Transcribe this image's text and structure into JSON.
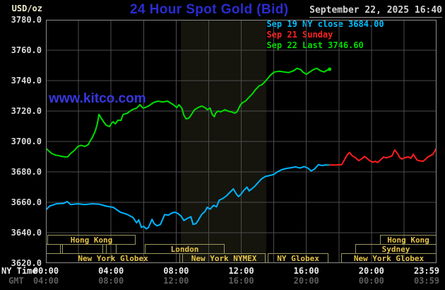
{
  "header": {
    "unit_label": "USD/oz",
    "title": "24 Hour Spot Gold (Bid)",
    "datetime": "September 22, 2025 16:40"
  },
  "watermark": "www.kitco.com",
  "legend": [
    {
      "dash": "-",
      "label": "Sep 19 NY close 3684.00",
      "color": "#00bfff"
    },
    {
      "dash": "-",
      "label": "Sep 21 Sunday",
      "color": "#ff2222"
    },
    {
      "dash": "-",
      "label": "Sep 22 Last 3746.60",
      "color": "#00dd00"
    }
  ],
  "axes": {
    "ny_label": "NY Time",
    "gmt_label": "GMT",
    "y_ticks": [
      "3780.0",
      "3760.0",
      "3740.0",
      "3720.0",
      "3700.0",
      "3680.0",
      "3660.0",
      "3640.0",
      "3620.0"
    ],
    "x_ticks": [
      {
        "hour": 0,
        "ny": "00:00",
        "gmt": "04:00"
      },
      {
        "hour": 4,
        "ny": "04:00",
        "gmt": "08:00"
      },
      {
        "hour": 8,
        "ny": "08:00",
        "gmt": "12:00"
      },
      {
        "hour": 12,
        "ny": "12:00",
        "gmt": "16:00"
      },
      {
        "hour": 16,
        "ny": "16:00",
        "gmt": "20:00"
      },
      {
        "hour": 20,
        "ny": "20:00",
        "gmt": "00:00"
      },
      {
        "hour": 23.98,
        "ny": "23:59",
        "gmt": "03:59"
      }
    ]
  },
  "colors": {
    "background": "#000000",
    "plot_border": "#8c8c8c",
    "gridline": "#4d4d4d",
    "nymex_band": "#15150e",
    "session_border": "#9c9660",
    "session_label": "#e6c44a",
    "title_blue": "#2b2bd2",
    "watermark_blue": "#3737e0"
  },
  "sessions": [
    {
      "row": 1,
      "label": "Hong Kong",
      "start": 0.09,
      "end": 5.51
    },
    {
      "row": 2,
      "label": "",
      "start": 0.0,
      "end": 0.91
    },
    {
      "row": 2,
      "label": "",
      "start": 1.0,
      "end": 3.52
    },
    {
      "row": 2,
      "label": "",
      "start": 3.69,
      "end": 4.34
    },
    {
      "row": 2,
      "label": "London",
      "start": 6.08,
      "end": 10.98
    },
    {
      "row": 3,
      "label": "New York Globex",
      "start": 0.0,
      "end": 8.25
    },
    {
      "row": 3,
      "label": "New York NYMEX",
      "start": 8.38,
      "end": 13.5
    },
    {
      "row": 3,
      "label": "NY Globex",
      "start": 13.63,
      "end": 17.36
    },
    {
      "row": 3,
      "label": "New York Globex",
      "start": 18.14,
      "end": 24.0
    },
    {
      "row": 2,
      "label": "Sydney",
      "start": 19.01,
      "end": 24.0
    },
    {
      "row": 1,
      "label": "Hong Kong",
      "start": 20.53,
      "end": 24.0
    }
  ],
  "chart_data": {
    "type": "line",
    "title": "24 Hour Spot Gold (Bid)",
    "ylabel": "USD/oz",
    "ylim": [
      3620,
      3780
    ],
    "y_tick_step": 20,
    "x_range_hours": [
      0,
      24
    ],
    "grid": true,
    "legend_position": "top-right",
    "nymex_band_hours": [
      8.29,
      13.54
    ],
    "sep19_ny_close": 3684.0,
    "sep22_last": 3746.6,
    "series": [
      {
        "name": "Sep 19 NY close 3684.00",
        "color": "#00b4ff",
        "points": [
          [
            0,
            3655
          ],
          [
            0.22,
            3657.5
          ],
          [
            0.65,
            3659
          ],
          [
            1.09,
            3659.3
          ],
          [
            1.3,
            3660.5
          ],
          [
            1.52,
            3658.5
          ],
          [
            1.96,
            3659
          ],
          [
            2.39,
            3658.5
          ],
          [
            2.83,
            3659
          ],
          [
            3.26,
            3658.8
          ],
          [
            3.7,
            3657.5
          ],
          [
            4.13,
            3656.7
          ],
          [
            4.57,
            3653.5
          ],
          [
            5,
            3652
          ],
          [
            5.35,
            3650
          ],
          [
            5.57,
            3646.5
          ],
          [
            5.7,
            3648.5
          ],
          [
            5.87,
            3643.5
          ],
          [
            6,
            3644.2
          ],
          [
            6.17,
            3642.5
          ],
          [
            6.3,
            3643.5
          ],
          [
            6.52,
            3648.8
          ],
          [
            6.65,
            3646
          ],
          [
            6.83,
            3644.5
          ],
          [
            7.04,
            3645.5
          ],
          [
            7.3,
            3652
          ],
          [
            7.52,
            3651.5
          ],
          [
            7.74,
            3653
          ],
          [
            7.91,
            3653.5
          ],
          [
            8.13,
            3652.5
          ],
          [
            8.3,
            3651
          ],
          [
            8.48,
            3648
          ],
          [
            8.7,
            3649.5
          ],
          [
            8.91,
            3650.5
          ],
          [
            9.04,
            3645.5
          ],
          [
            9.22,
            3646
          ],
          [
            9.35,
            3648
          ],
          [
            9.57,
            3652
          ],
          [
            9.78,
            3654
          ],
          [
            9.91,
            3656.7
          ],
          [
            10.09,
            3655.5
          ],
          [
            10.3,
            3658
          ],
          [
            10.48,
            3657
          ],
          [
            10.65,
            3661.4
          ],
          [
            10.87,
            3662.5
          ],
          [
            11.09,
            3664.2
          ],
          [
            11.3,
            3666.5
          ],
          [
            11.52,
            3668.8
          ],
          [
            11.7,
            3665.5
          ],
          [
            11.83,
            3663.7
          ],
          [
            12,
            3665.5
          ],
          [
            12.17,
            3668
          ],
          [
            12.35,
            3670
          ],
          [
            12.48,
            3667.5
          ],
          [
            12.61,
            3668.5
          ],
          [
            12.83,
            3670.5
          ],
          [
            13.04,
            3673
          ],
          [
            13.26,
            3675.5
          ],
          [
            13.48,
            3677
          ],
          [
            13.7,
            3677.5
          ],
          [
            14,
            3678.3
          ],
          [
            14.22,
            3680
          ],
          [
            14.48,
            3681.4
          ],
          [
            14.78,
            3682.3
          ],
          [
            15.09,
            3682.8
          ],
          [
            15.35,
            3683.3
          ],
          [
            15.61,
            3682.5
          ],
          [
            15.87,
            3683.5
          ],
          [
            16.09,
            3682.5
          ],
          [
            16.3,
            3680.6
          ],
          [
            16.52,
            3682
          ],
          [
            16.74,
            3684.7
          ],
          [
            16.96,
            3684.2
          ],
          [
            17.17,
            3684.5
          ],
          [
            17.39,
            3684.5
          ]
        ]
      },
      {
        "name": "Sep 21 Sunday",
        "color": "#ff1e1e",
        "points": [
          [
            17.43,
            3684.5
          ],
          [
            17.83,
            3684.5
          ],
          [
            18.17,
            3684.8
          ],
          [
            18.35,
            3688
          ],
          [
            18.48,
            3690.7
          ],
          [
            18.65,
            3692.8
          ],
          [
            18.83,
            3690.5
          ],
          [
            19,
            3689.5
          ],
          [
            19.22,
            3687.4
          ],
          [
            19.39,
            3688.5
          ],
          [
            19.57,
            3690.2
          ],
          [
            19.74,
            3688.8
          ],
          [
            19.91,
            3687.2
          ],
          [
            20.09,
            3686.4
          ],
          [
            20.22,
            3687
          ],
          [
            20.39,
            3686.2
          ],
          [
            20.57,
            3688
          ],
          [
            20.74,
            3689.8
          ],
          [
            20.91,
            3689.2
          ],
          [
            21.09,
            3689.8
          ],
          [
            21.26,
            3690.5
          ],
          [
            21.43,
            3694.4
          ],
          [
            21.61,
            3692
          ],
          [
            21.74,
            3689.5
          ],
          [
            21.87,
            3688.4
          ],
          [
            22.04,
            3689.3
          ],
          [
            22.26,
            3689.8
          ],
          [
            22.43,
            3689
          ],
          [
            22.57,
            3691.6
          ],
          [
            22.7,
            3689.5
          ],
          [
            22.83,
            3687.6
          ],
          [
            23,
            3687.2
          ],
          [
            23.17,
            3687
          ],
          [
            23.35,
            3688.5
          ],
          [
            23.48,
            3689.9
          ],
          [
            23.65,
            3690.8
          ],
          [
            23.78,
            3691.6
          ],
          [
            23.91,
            3694
          ],
          [
            24,
            3695.5
          ]
        ]
      },
      {
        "name": "Sep 22 Last 3746.60",
        "color": "#00dd00",
        "points": [
          [
            0,
            3695.5
          ],
          [
            0.35,
            3692.1
          ],
          [
            0.6,
            3691
          ],
          [
            0.78,
            3690.7
          ],
          [
            0.96,
            3690.2
          ],
          [
            1.22,
            3689.8
          ],
          [
            1.35,
            3690
          ],
          [
            1.52,
            3692.1
          ],
          [
            1.74,
            3694
          ],
          [
            1.96,
            3696.7
          ],
          [
            2.17,
            3697.5
          ],
          [
            2.39,
            3696.7
          ],
          [
            2.61,
            3698
          ],
          [
            2.7,
            3700
          ],
          [
            2.87,
            3703
          ],
          [
            3.04,
            3707
          ],
          [
            3.17,
            3712
          ],
          [
            3.26,
            3717.8
          ],
          [
            3.39,
            3715.5
          ],
          [
            3.57,
            3712.5
          ],
          [
            3.7,
            3710.7
          ],
          [
            3.91,
            3709.8
          ],
          [
            4.04,
            3712
          ],
          [
            4.13,
            3713
          ],
          [
            4.26,
            3711.6
          ],
          [
            4.43,
            3714
          ],
          [
            4.61,
            3713.8
          ],
          [
            4.74,
            3717.7
          ],
          [
            5,
            3718.6
          ],
          [
            5.3,
            3720.9
          ],
          [
            5.57,
            3721.9
          ],
          [
            5.78,
            3724.2
          ],
          [
            5.96,
            3722
          ],
          [
            6.09,
            3722.3
          ],
          [
            6.3,
            3723.3
          ],
          [
            6.61,
            3725.6
          ],
          [
            6.87,
            3726.5
          ],
          [
            7.17,
            3726
          ],
          [
            7.48,
            3726.5
          ],
          [
            7.61,
            3725.6
          ],
          [
            7.83,
            3724.2
          ],
          [
            8.04,
            3722.3
          ],
          [
            8.17,
            3724.2
          ],
          [
            8.35,
            3721.9
          ],
          [
            8.48,
            3717.2
          ],
          [
            8.61,
            3714.9
          ],
          [
            8.78,
            3715.3
          ],
          [
            8.91,
            3717.2
          ],
          [
            9.13,
            3720.9
          ],
          [
            9.35,
            3722.3
          ],
          [
            9.57,
            3723.3
          ],
          [
            9.78,
            3722.3
          ],
          [
            9.91,
            3720.9
          ],
          [
            10.09,
            3721.9
          ],
          [
            10.22,
            3717.7
          ],
          [
            10.35,
            3716.3
          ],
          [
            10.43,
            3718.6
          ],
          [
            10.57,
            3720
          ],
          [
            10.74,
            3719.5
          ],
          [
            11,
            3720.9
          ],
          [
            11.17,
            3720
          ],
          [
            11.39,
            3719.5
          ],
          [
            11.61,
            3718.6
          ],
          [
            11.74,
            3719.5
          ],
          [
            11.96,
            3724.2
          ],
          [
            12.09,
            3725.6
          ],
          [
            12.26,
            3726.5
          ],
          [
            12.48,
            3729
          ],
          [
            12.7,
            3731.5
          ],
          [
            12.87,
            3734
          ],
          [
            12.96,
            3734.9
          ],
          [
            13.09,
            3736.5
          ],
          [
            13.26,
            3737.2
          ],
          [
            13.48,
            3739.5
          ],
          [
            13.78,
            3743.4
          ],
          [
            14.04,
            3745.7
          ],
          [
            14.35,
            3746.2
          ],
          [
            14.65,
            3745.7
          ],
          [
            14.91,
            3745.3
          ],
          [
            15.22,
            3746.5
          ],
          [
            15.43,
            3748.1
          ],
          [
            15.65,
            3747.3
          ],
          [
            15.78,
            3745.7
          ],
          [
            16,
            3744.2
          ],
          [
            16.22,
            3745.7
          ],
          [
            16.43,
            3747.3
          ],
          [
            16.65,
            3748.1
          ],
          [
            16.87,
            3746.5
          ],
          [
            17.09,
            3745.7
          ],
          [
            17.3,
            3747
          ],
          [
            17.43,
            3747.5
          ]
        ]
      }
    ]
  }
}
